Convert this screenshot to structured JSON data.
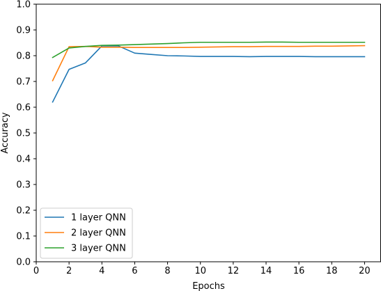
{
  "chart_data": {
    "type": "line",
    "title": "",
    "xlabel": "Epochs",
    "ylabel": "Accuracy",
    "xlim": [
      0,
      21
    ],
    "ylim": [
      0.0,
      1.0
    ],
    "xticks": [
      0,
      2,
      4,
      6,
      8,
      10,
      12,
      14,
      16,
      18,
      20
    ],
    "yticks": [
      0.0,
      0.1,
      0.2,
      0.3,
      0.4,
      0.5,
      0.6,
      0.7,
      0.8,
      0.9,
      1.0
    ],
    "ytick_labels": [
      "0.0",
      "0.1",
      "0.2",
      "0.3",
      "0.4",
      "0.5",
      "0.6",
      "0.7",
      "0.8",
      "0.9",
      "1.0"
    ],
    "grid": false,
    "legend_position": "lower-left",
    "x": [
      1,
      2,
      3,
      4,
      5,
      6,
      7,
      8,
      9,
      10,
      11,
      12,
      13,
      14,
      15,
      16,
      17,
      18,
      19,
      20
    ],
    "series": [
      {
        "name": "1 layer QNN",
        "color": "#1f77b4",
        "values": [
          0.62,
          0.747,
          0.772,
          0.838,
          0.838,
          0.81,
          0.805,
          0.8,
          0.799,
          0.797,
          0.797,
          0.797,
          0.796,
          0.797,
          0.797,
          0.797,
          0.796,
          0.796,
          0.796,
          0.796
        ]
      },
      {
        "name": "2 layer QNN",
        "color": "#ff7f0e",
        "values": [
          0.703,
          0.835,
          0.836,
          0.833,
          0.833,
          0.832,
          0.832,
          0.832,
          0.832,
          0.833,
          0.834,
          0.835,
          0.835,
          0.836,
          0.836,
          0.836,
          0.837,
          0.837,
          0.838,
          0.839
        ]
      },
      {
        "name": "3 layer QNN",
        "color": "#2ca02c",
        "values": [
          0.793,
          0.83,
          0.836,
          0.84,
          0.841,
          0.843,
          0.845,
          0.847,
          0.85,
          0.852,
          0.852,
          0.852,
          0.852,
          0.853,
          0.853,
          0.852,
          0.852,
          0.852,
          0.852,
          0.852
        ]
      }
    ]
  }
}
